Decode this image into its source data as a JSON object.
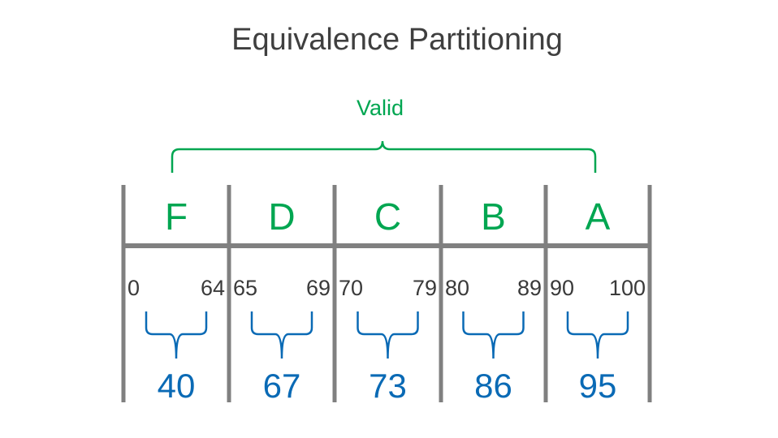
{
  "title": "Equivalence Partitioning",
  "valid_label": "Valid",
  "colors": {
    "title": "#3f3f3f",
    "valid": "#00a651",
    "grade": "#00a651",
    "grid": "#808080",
    "bounds": "#3a3a3a",
    "sample": "#0a6ab5"
  },
  "partitions": [
    {
      "grade": "F",
      "low": "0",
      "high": "64",
      "sample": "40"
    },
    {
      "grade": "D",
      "low": "65",
      "high": "69",
      "sample": "67"
    },
    {
      "grade": "C",
      "low": "70",
      "high": "79",
      "sample": "73"
    },
    {
      "grade": "B",
      "low": "80",
      "high": "89",
      "sample": "86"
    },
    {
      "grade": "A",
      "low": "90",
      "high": "100",
      "sample": "95"
    }
  ]
}
